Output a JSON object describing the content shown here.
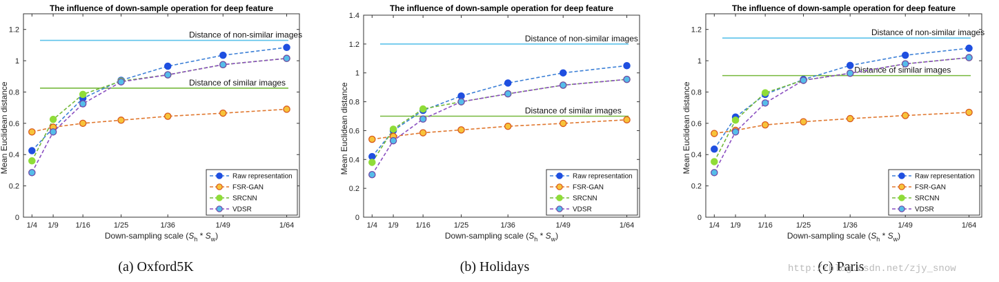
{
  "colors": {
    "raw": "#1f4fe0",
    "raw_line": "#3b7fd6",
    "fsr": "#f7c33a",
    "fsr_line": "#e0772e",
    "fsr_edge": "#d9581c",
    "srcnn": "#8fdc38",
    "srcnn_line": "#73b93a",
    "vdsr": "#55bde9",
    "vdsr_line": "#8a4fc0",
    "vdsr_edge": "#7048a8",
    "nonsim": "#5bc2ea",
    "sim": "#76b83c"
  },
  "watermark": "http://blog.csdn.net/zjy_snow",
  "chart_data": [
    {
      "type": "line",
      "title": "The influence of down-sample operation for deep feature",
      "caption": "(a)  Oxford5K",
      "xlabel": "Down-sampling scale (S_h * S_w)",
      "xlabel_text": "Down-sampling scale (",
      "xlabel_s": "S",
      "xlabel_h": "h",
      "xlabel_mult": " * ",
      "xlabel_w": "w",
      "xlabel_close": ")",
      "ylabel": "Mean Euclidean distance",
      "ylim": [
        0,
        1.3
      ],
      "yticks": [
        0,
        0.2,
        0.4,
        0.6,
        0.8,
        1,
        1.2
      ],
      "ytick_labels": [
        "0",
        "0.2",
        "0.4",
        "0.6",
        "0.8",
        "1",
        "1.2"
      ],
      "x": [
        4,
        9,
        16,
        25,
        36,
        49,
        64
      ],
      "xlim": [
        2,
        67
      ],
      "xtick_labels": [
        "1/4",
        "1/9",
        "1/16",
        "1/25",
        "1/36",
        "1/49",
        "1/64"
      ],
      "hlines": [
        {
          "name": "Distance of non-similar images",
          "value": 1.13,
          "color_key": "nonsim",
          "label_x": 41
        },
        {
          "name": "Distance of similar images",
          "value": 0.825,
          "color_key": "sim",
          "label_x": 41
        }
      ],
      "series": [
        {
          "name": "Raw representation",
          "key": "raw",
          "values": [
            0.425,
            0.57,
            0.76,
            0.875,
            0.965,
            1.035,
            1.085
          ]
        },
        {
          "name": "FSR-GAN",
          "key": "fsr",
          "values": [
            0.545,
            0.575,
            0.6,
            0.62,
            0.645,
            0.665,
            0.69
          ]
        },
        {
          "name": "SRCNN",
          "key": "srcnn",
          "values": [
            0.36,
            0.625,
            0.785,
            0.87,
            0.91,
            0.975,
            1.015
          ]
        },
        {
          "name": "VDSR",
          "key": "vdsr",
          "values": [
            0.285,
            0.545,
            0.725,
            0.865,
            0.91,
            0.975,
            1.015
          ]
        }
      ]
    },
    {
      "type": "line",
      "title": "The influence of down-sample operation for deep feature",
      "caption": "(b)  Holidays",
      "xlabel": "Down-sampling scale (S_h * S_w)",
      "xlabel_text": "Down-sampling scale (",
      "xlabel_s": "S",
      "xlabel_h": "h",
      "xlabel_mult": " * ",
      "xlabel_w": "w",
      "xlabel_close": ")",
      "ylabel": "Mean Euclidean distance",
      "ylim": [
        0,
        1.4
      ],
      "yticks": [
        0,
        0.2,
        0.4,
        0.6,
        0.8,
        1,
        1.2,
        1.4
      ],
      "ytick_labels": [
        "0",
        "0.2",
        "0.4",
        "0.6",
        "0.8",
        "1",
        "1.2",
        "1.4"
      ],
      "x": [
        4,
        9,
        16,
        25,
        36,
        49,
        64
      ],
      "xlim": [
        2,
        67
      ],
      "xtick_labels": [
        "1/4",
        "1/9",
        "1/16",
        "1/25",
        "1/36",
        "1/49",
        "1/64"
      ],
      "hlines": [
        {
          "name": "Distance of non-similar images",
          "value": 1.2,
          "color_key": "nonsim",
          "label_x": 40
        },
        {
          "name": "Distance of similar images",
          "value": 0.7,
          "color_key": "sim",
          "label_x": 40
        }
      ],
      "series": [
        {
          "name": "Raw representation",
          "key": "raw",
          "values": [
            0.42,
            0.6,
            0.74,
            0.84,
            0.93,
            1.0,
            1.05
          ]
        },
        {
          "name": "FSR-GAN",
          "key": "fsr",
          "values": [
            0.54,
            0.56,
            0.585,
            0.605,
            0.63,
            0.65,
            0.675
          ]
        },
        {
          "name": "SRCNN",
          "key": "srcnn",
          "values": [
            0.38,
            0.61,
            0.75,
            0.8,
            0.855,
            0.915,
            0.955
          ]
        },
        {
          "name": "VDSR",
          "key": "vdsr",
          "values": [
            0.295,
            0.53,
            0.68,
            0.8,
            0.855,
            0.915,
            0.955
          ]
        }
      ]
    },
    {
      "type": "line",
      "title": "The influence of down-sample operation for deep feature",
      "caption": "(c)  Paris",
      "xlabel": "Down-sampling scale (S_h * S_w)",
      "xlabel_text": "Down-sampling scale (",
      "xlabel_s": "S",
      "xlabel_h": "h",
      "xlabel_mult": " * ",
      "xlabel_w": "w",
      "xlabel_close": ")",
      "ylabel": "Mean Euclidean distance",
      "ylim": [
        0,
        1.3
      ],
      "yticks": [
        0,
        0.2,
        0.4,
        0.6,
        0.8,
        1,
        1.2
      ],
      "ytick_labels": [
        "0",
        "0.2",
        "0.4",
        "0.6",
        "0.8",
        "1",
        "1.2"
      ],
      "x": [
        4,
        9,
        16,
        25,
        36,
        49,
        64
      ],
      "xlim": [
        2,
        67
      ],
      "xtick_labels": [
        "1/4",
        "1/9",
        "1/16",
        "1/25",
        "1/36",
        "1/49",
        "1/64"
      ],
      "hlines": [
        {
          "name": "Distance of non-similar images",
          "value": 1.145,
          "color_key": "nonsim",
          "label_x": 41
        },
        {
          "name": "Distance of similar images",
          "value": 0.905,
          "color_key": "sim",
          "label_x": 37
        }
      ],
      "series": [
        {
          "name": "Raw representation",
          "key": "raw",
          "values": [
            0.435,
            0.64,
            0.785,
            0.88,
            0.97,
            1.035,
            1.08
          ]
        },
        {
          "name": "FSR-GAN",
          "key": "fsr",
          "values": [
            0.535,
            0.555,
            0.59,
            0.61,
            0.63,
            0.65,
            0.67
          ]
        },
        {
          "name": "SRCNN",
          "key": "srcnn",
          "values": [
            0.355,
            0.62,
            0.795,
            0.875,
            0.92,
            0.98,
            1.02
          ]
        },
        {
          "name": "VDSR",
          "key": "vdsr",
          "values": [
            0.285,
            0.545,
            0.73,
            0.875,
            0.92,
            0.98,
            1.02
          ]
        }
      ]
    }
  ]
}
